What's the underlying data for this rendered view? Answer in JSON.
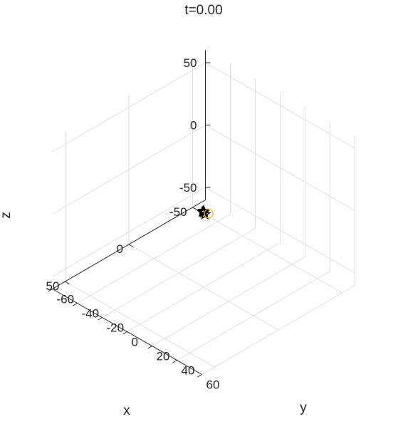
{
  "chart_data": {
    "type": "scatter",
    "title": "t=0.00",
    "xlabel": "x",
    "ylabel": "y",
    "zlabel": "z",
    "xlim": [
      -60,
      60
    ],
    "ylim": [
      -60,
      60
    ],
    "zlim": [
      -60,
      60
    ],
    "x_ticks": [
      "-50",
      "0",
      "50"
    ],
    "y_ticks": [
      "-60",
      "-40",
      "-20",
      "0",
      "20",
      "40",
      "60"
    ],
    "z_ticks": [
      "-50",
      "0",
      "50"
    ],
    "grid": true,
    "series": [
      {
        "marker": "star",
        "color": "#000000",
        "points": [
          {
            "x": 0,
            "y": 0,
            "z": 0
          },
          {
            "x": 1,
            "y": 0,
            "z": 1
          },
          {
            "x": 0,
            "y": 1,
            "z": -1
          },
          {
            "x": -1,
            "y": -1,
            "z": 0
          }
        ]
      },
      {
        "marker": "circle",
        "color": "#EDB120",
        "points": [
          {
            "x": -2,
            "y": 2,
            "z": -1
          }
        ]
      }
    ]
  }
}
